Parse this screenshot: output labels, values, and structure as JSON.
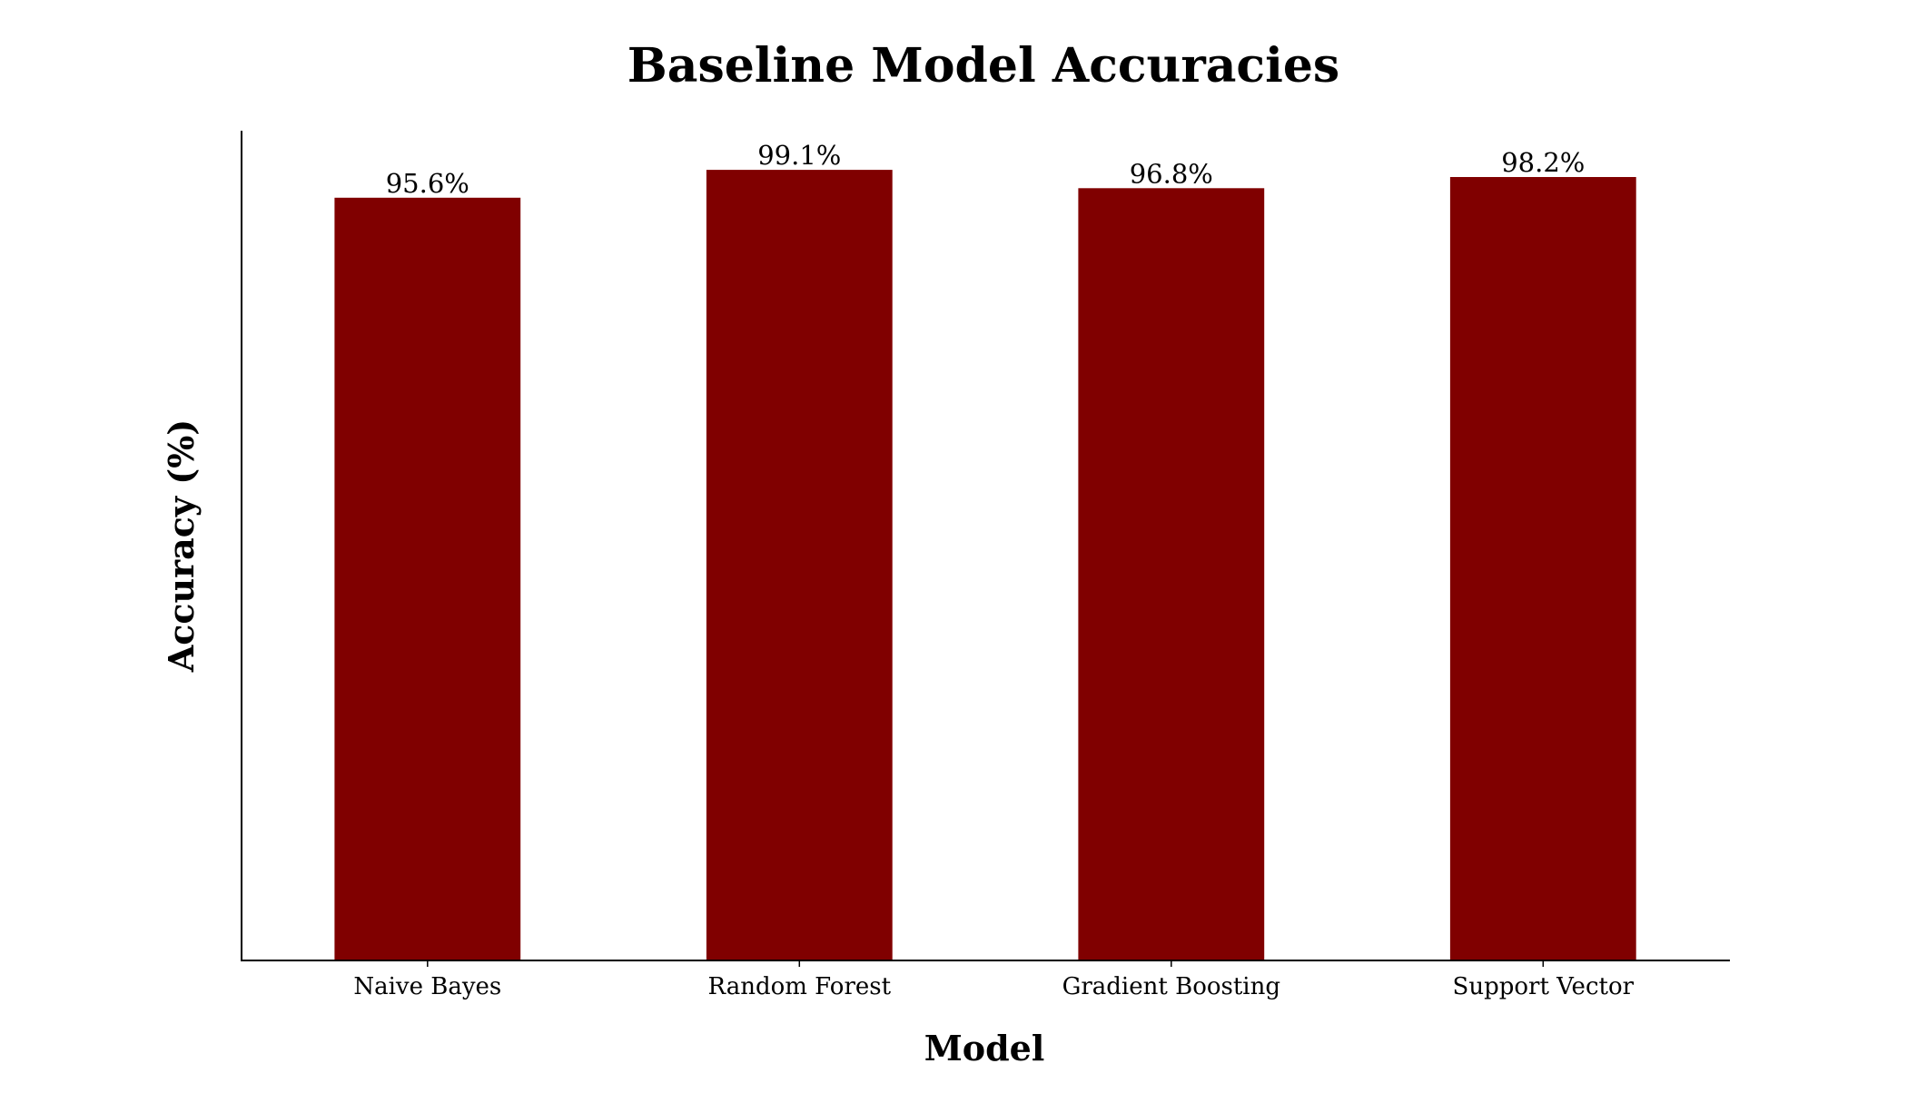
{
  "chart_data": {
    "type": "bar",
    "title": "Baseline Model Accuracies",
    "xlabel": "Model",
    "ylabel": "Accuracy (%)",
    "categories": [
      "Naive Bayes",
      "Random Forest",
      "Gradient Boosting",
      "Support Vector"
    ],
    "values": [
      95.6,
      99.1,
      96.8,
      98.2
    ],
    "value_labels": [
      "95.6%",
      "99.1%",
      "96.8%",
      "98.2%"
    ],
    "ylim": [
      0,
      104
    ],
    "grid": false,
    "legend": "none",
    "y_ticks_visible": false
  },
  "colors": {
    "bar": "#800000",
    "axis": "#000000",
    "background": "#ffffff"
  }
}
